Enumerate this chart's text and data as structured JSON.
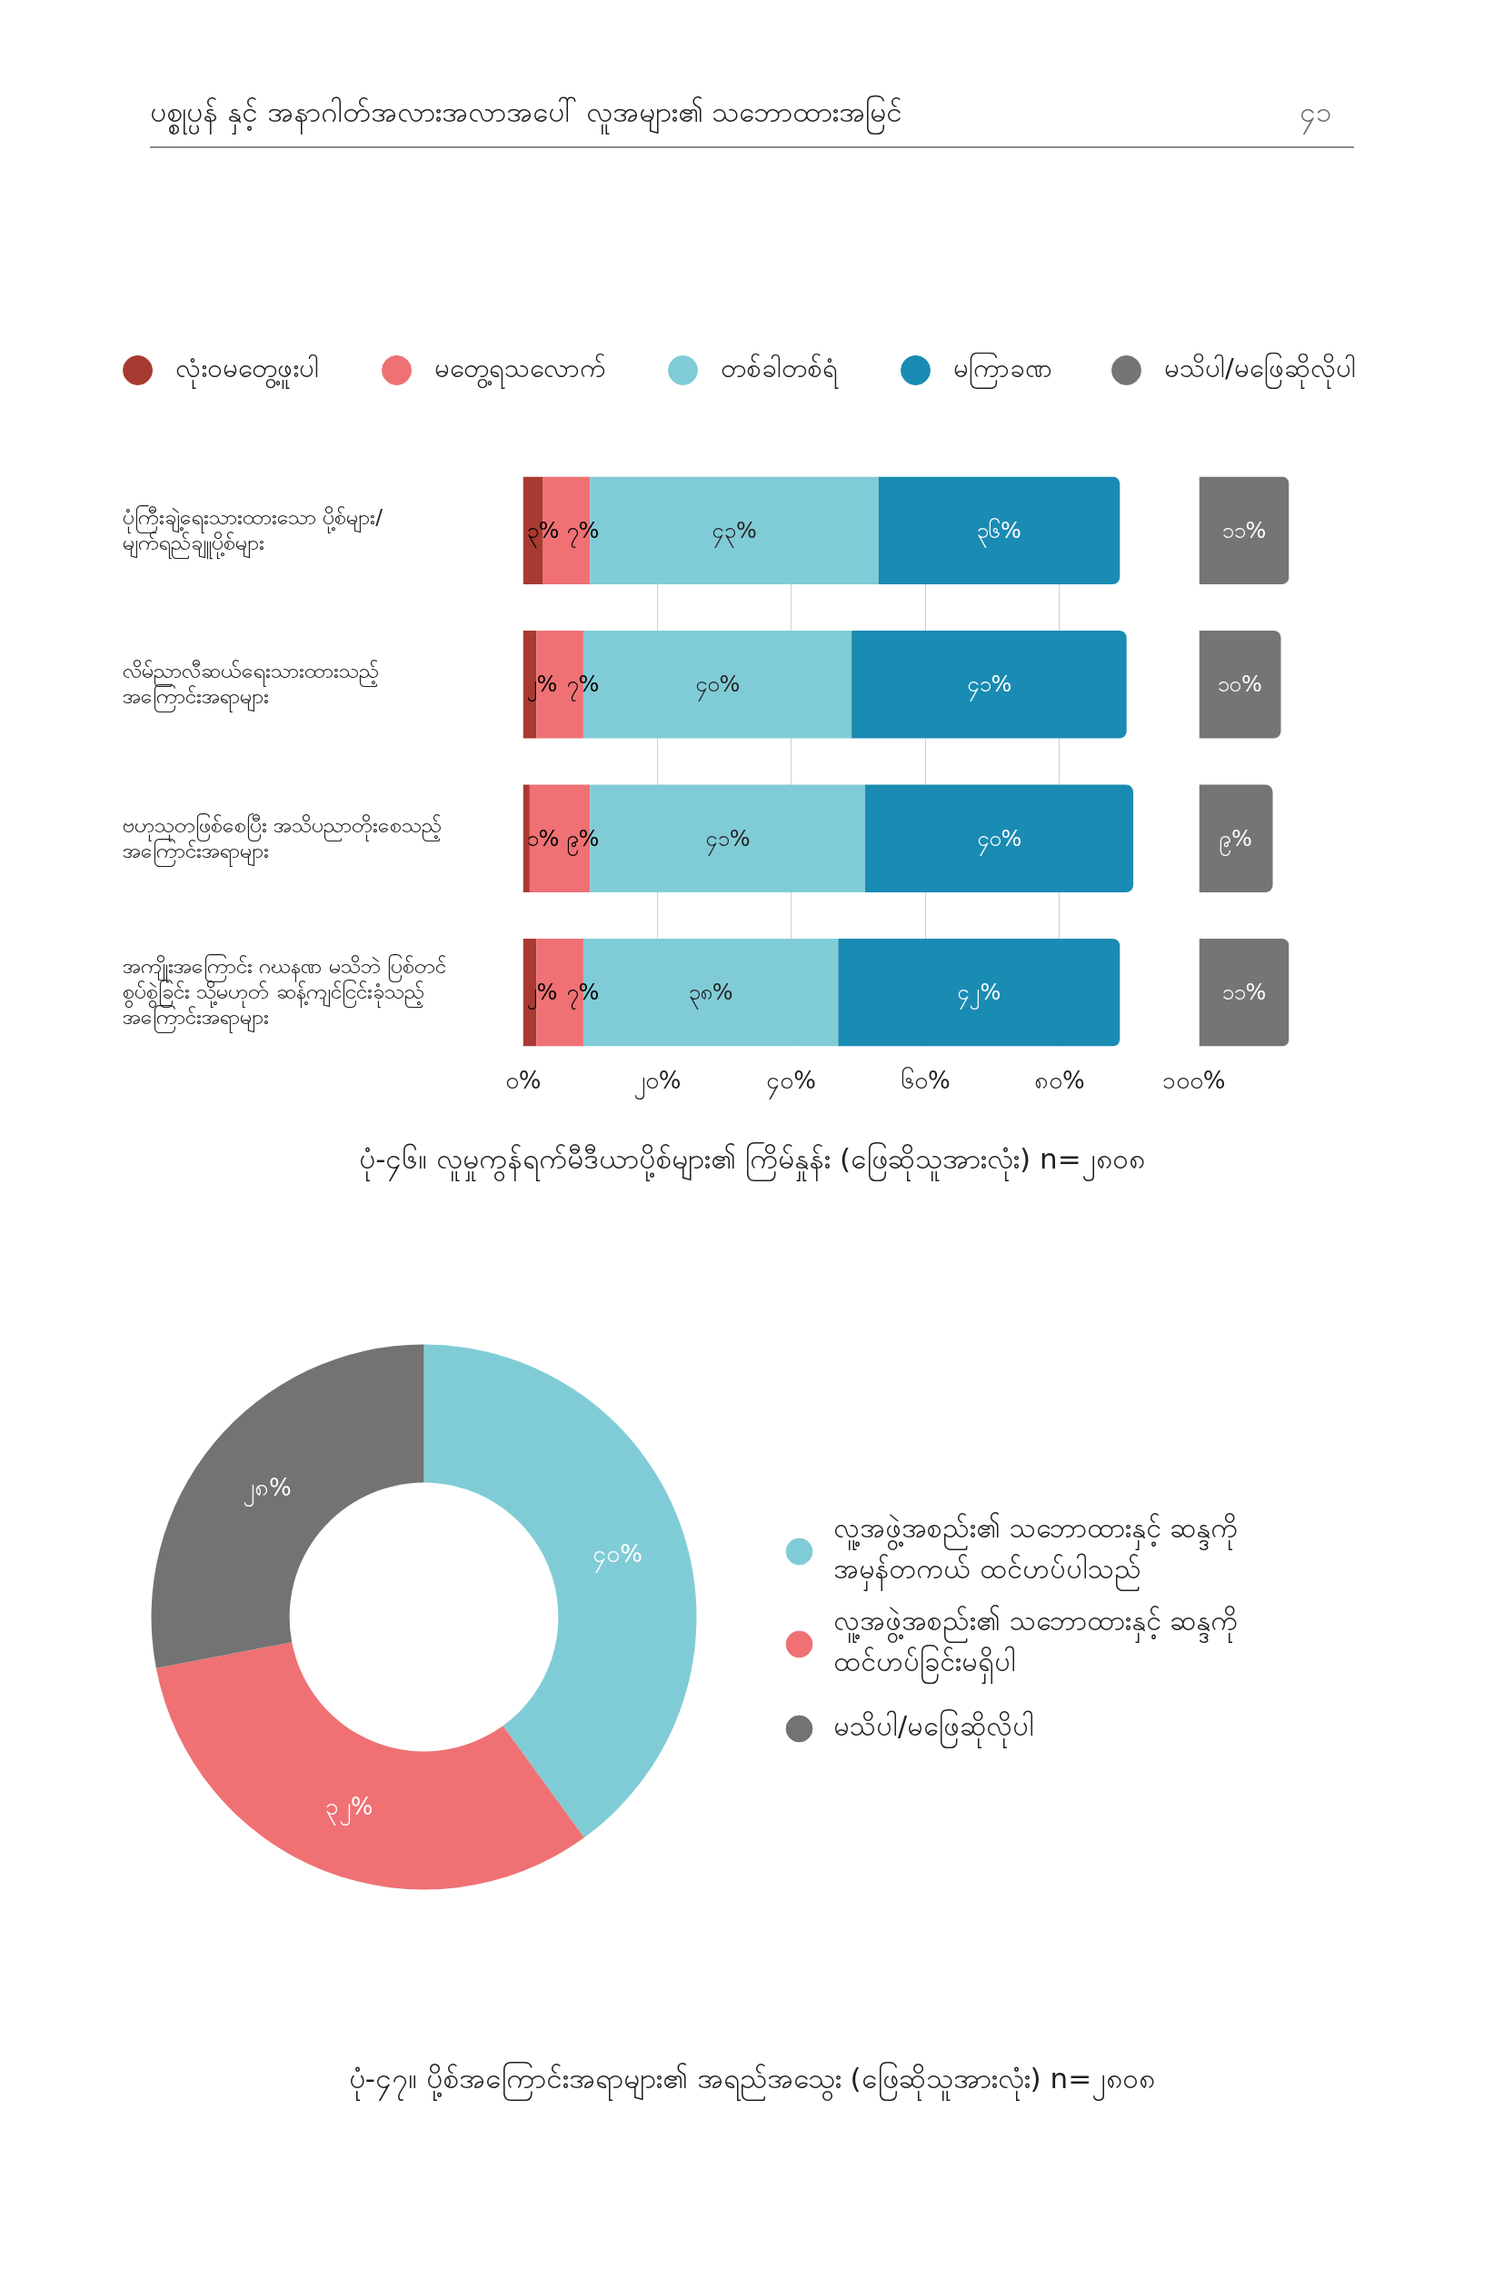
{
  "chart_data": [
    {
      "type": "bar",
      "orientation": "horizontal",
      "stacked": true,
      "title": "ပုံ-၄၆။ လူမှုကွန်ရက်မီဒီယာပို့စ်များ၏ ကြိမ်နှုန်း (ဖြေဆိုသူအားလုံး) n=၂၈၀၈",
      "annotations": [
        "ပစ္စုပ္ပန် နှင့် အနာဂါတ်အလားအလာအပေါ် လူအများ၏ သဘောထားအမြင်",
        "၄၁"
      ],
      "categories": [
        "ပုံကြီးချဲ့ရေးသားထားသော ပို့စ်များ/\nမျက်ရည်ချူပို့စ်များ",
        "လိမ်ညာလီဆယ်ရေးသားထားသည့်\nအကြောင်းအရာများ",
        "ဗဟုသုတဖြစ်စေပြီး အသိပညာတိုးစေသည့်\nအကြောင်းအရာများ",
        "အကျိုးအကြောင်း ဂဃနဏ မသိဘဲ ပြစ်တင်\nစွပ်စွဲခြင်း သို့မဟုတ် ဆန့်ကျင်ငြင်းခုံသည့်\nအကြောင်းအရာများ"
      ],
      "series": [
        {
          "name": "လုံးဝမတွေ့ဖူးပါ",
          "color": "#a93a31",
          "values": [
            3,
            2,
            1,
            2
          ],
          "value_labels": [
            "၃%",
            "၂%",
            "၁%",
            "၂%"
          ]
        },
        {
          "name": "မတွေ့ရသလောက်",
          "color": "#ef7174",
          "values": [
            7,
            7,
            9,
            7
          ],
          "value_labels": [
            "၇%",
            "၇%",
            "၉%",
            "၇%"
          ]
        },
        {
          "name": "တစ်ခါတစ်ရံ",
          "color": "#80ccd6",
          "values": [
            43,
            40,
            41,
            38
          ],
          "value_labels": [
            "၄၃%",
            "၄၀%",
            "၄၁%",
            "၃၈%"
          ]
        },
        {
          "name": "မကြာခဏ",
          "color": "#1a8bb3",
          "values": [
            36,
            41,
            40,
            42
          ],
          "value_labels": [
            "၃၆%",
            "၄၁%",
            "၄၀%",
            "၄၂%"
          ]
        }
      ],
      "xlim": [
        0,
        100
      ],
      "xticks": [
        {
          "value": 0,
          "label": "၀%"
        },
        {
          "value": 20,
          "label": "၂၀%"
        },
        {
          "value": 40,
          "label": "၄၀%"
        },
        {
          "value": 60,
          "label": "၆၀%"
        },
        {
          "value": 80,
          "label": "၈၀%"
        },
        {
          "value": 100,
          "label": "၁၀၀%"
        }
      ],
      "grid": "x",
      "legend": "top"
    },
    {
      "type": "bar",
      "orientation": "horizontal",
      "categories": [
        null,
        null,
        null,
        null
      ],
      "series": [
        {
          "name": "မသိပါ/မဖြေဆိုလိုပါ",
          "color": "#757575",
          "values": [
            11,
            10,
            9,
            11
          ],
          "value_labels": [
            "၁၁%",
            "၁၀%",
            "၉%",
            "၁၁%"
          ]
        }
      ],
      "legend": "top"
    },
    {
      "type": "donut",
      "title": "ပုံ-၄၇။ ပို့စ်အကြောင်းအရာများ၏ အရည်အသွေး (ဖြေဆိုသူအားလုံး) n=၂၈၀၈",
      "categories": [
        "လူ့အဖွဲ့အစည်း၏ သဘောထားနှင့် ဆန္ဒကို\nအမှန်တကယ် ထင်ဟပ်ပါသည်",
        "လူ့အဖွဲ့အစည်း၏ သဘောထားနှင့် ဆန္ဒကို\nထင်ဟပ်ခြင်းမရှိပါ",
        "မသိပါ/မဖြေဆိုလိုပါ"
      ],
      "values": [
        40,
        32,
        28
      ],
      "colors": [
        "#80ccd6",
        "#ef7174",
        "#737373"
      ],
      "value_labels": [
        "၄၀%",
        "၃၂%",
        "၂၈%"
      ],
      "legend": "right"
    }
  ]
}
